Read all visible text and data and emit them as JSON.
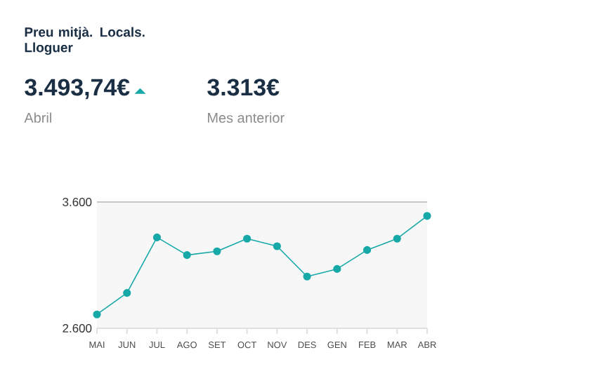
{
  "chart_data": {
    "type": "line",
    "title": "Preu mitjà. Locals. Lloguer",
    "annotations": [
      "3.493,74€",
      "Abril",
      "3.313€",
      "Mes anterior"
    ],
    "categories": [
      "MAI",
      "JUN",
      "JUL",
      "AGO",
      "SET",
      "OCT",
      "NOV",
      "DES",
      "GEN",
      "FEB",
      "MAR",
      "ABR"
    ],
    "series": [
      {
        "color": "#17a8a8",
        "values": [
          2710,
          2880,
          3320,
          3180,
          3210,
          3310,
          3250,
          3010,
          3070,
          3220,
          3310,
          3490
        ]
      }
    ],
    "ylim": [
      2600,
      3600
    ],
    "yticks": [
      {
        "value": 2600,
        "label": "2.600"
      },
      {
        "value": 3600,
        "label": "3.600"
      }
    ],
    "grid": "y",
    "marker": "circle",
    "line_style": "solid"
  }
}
